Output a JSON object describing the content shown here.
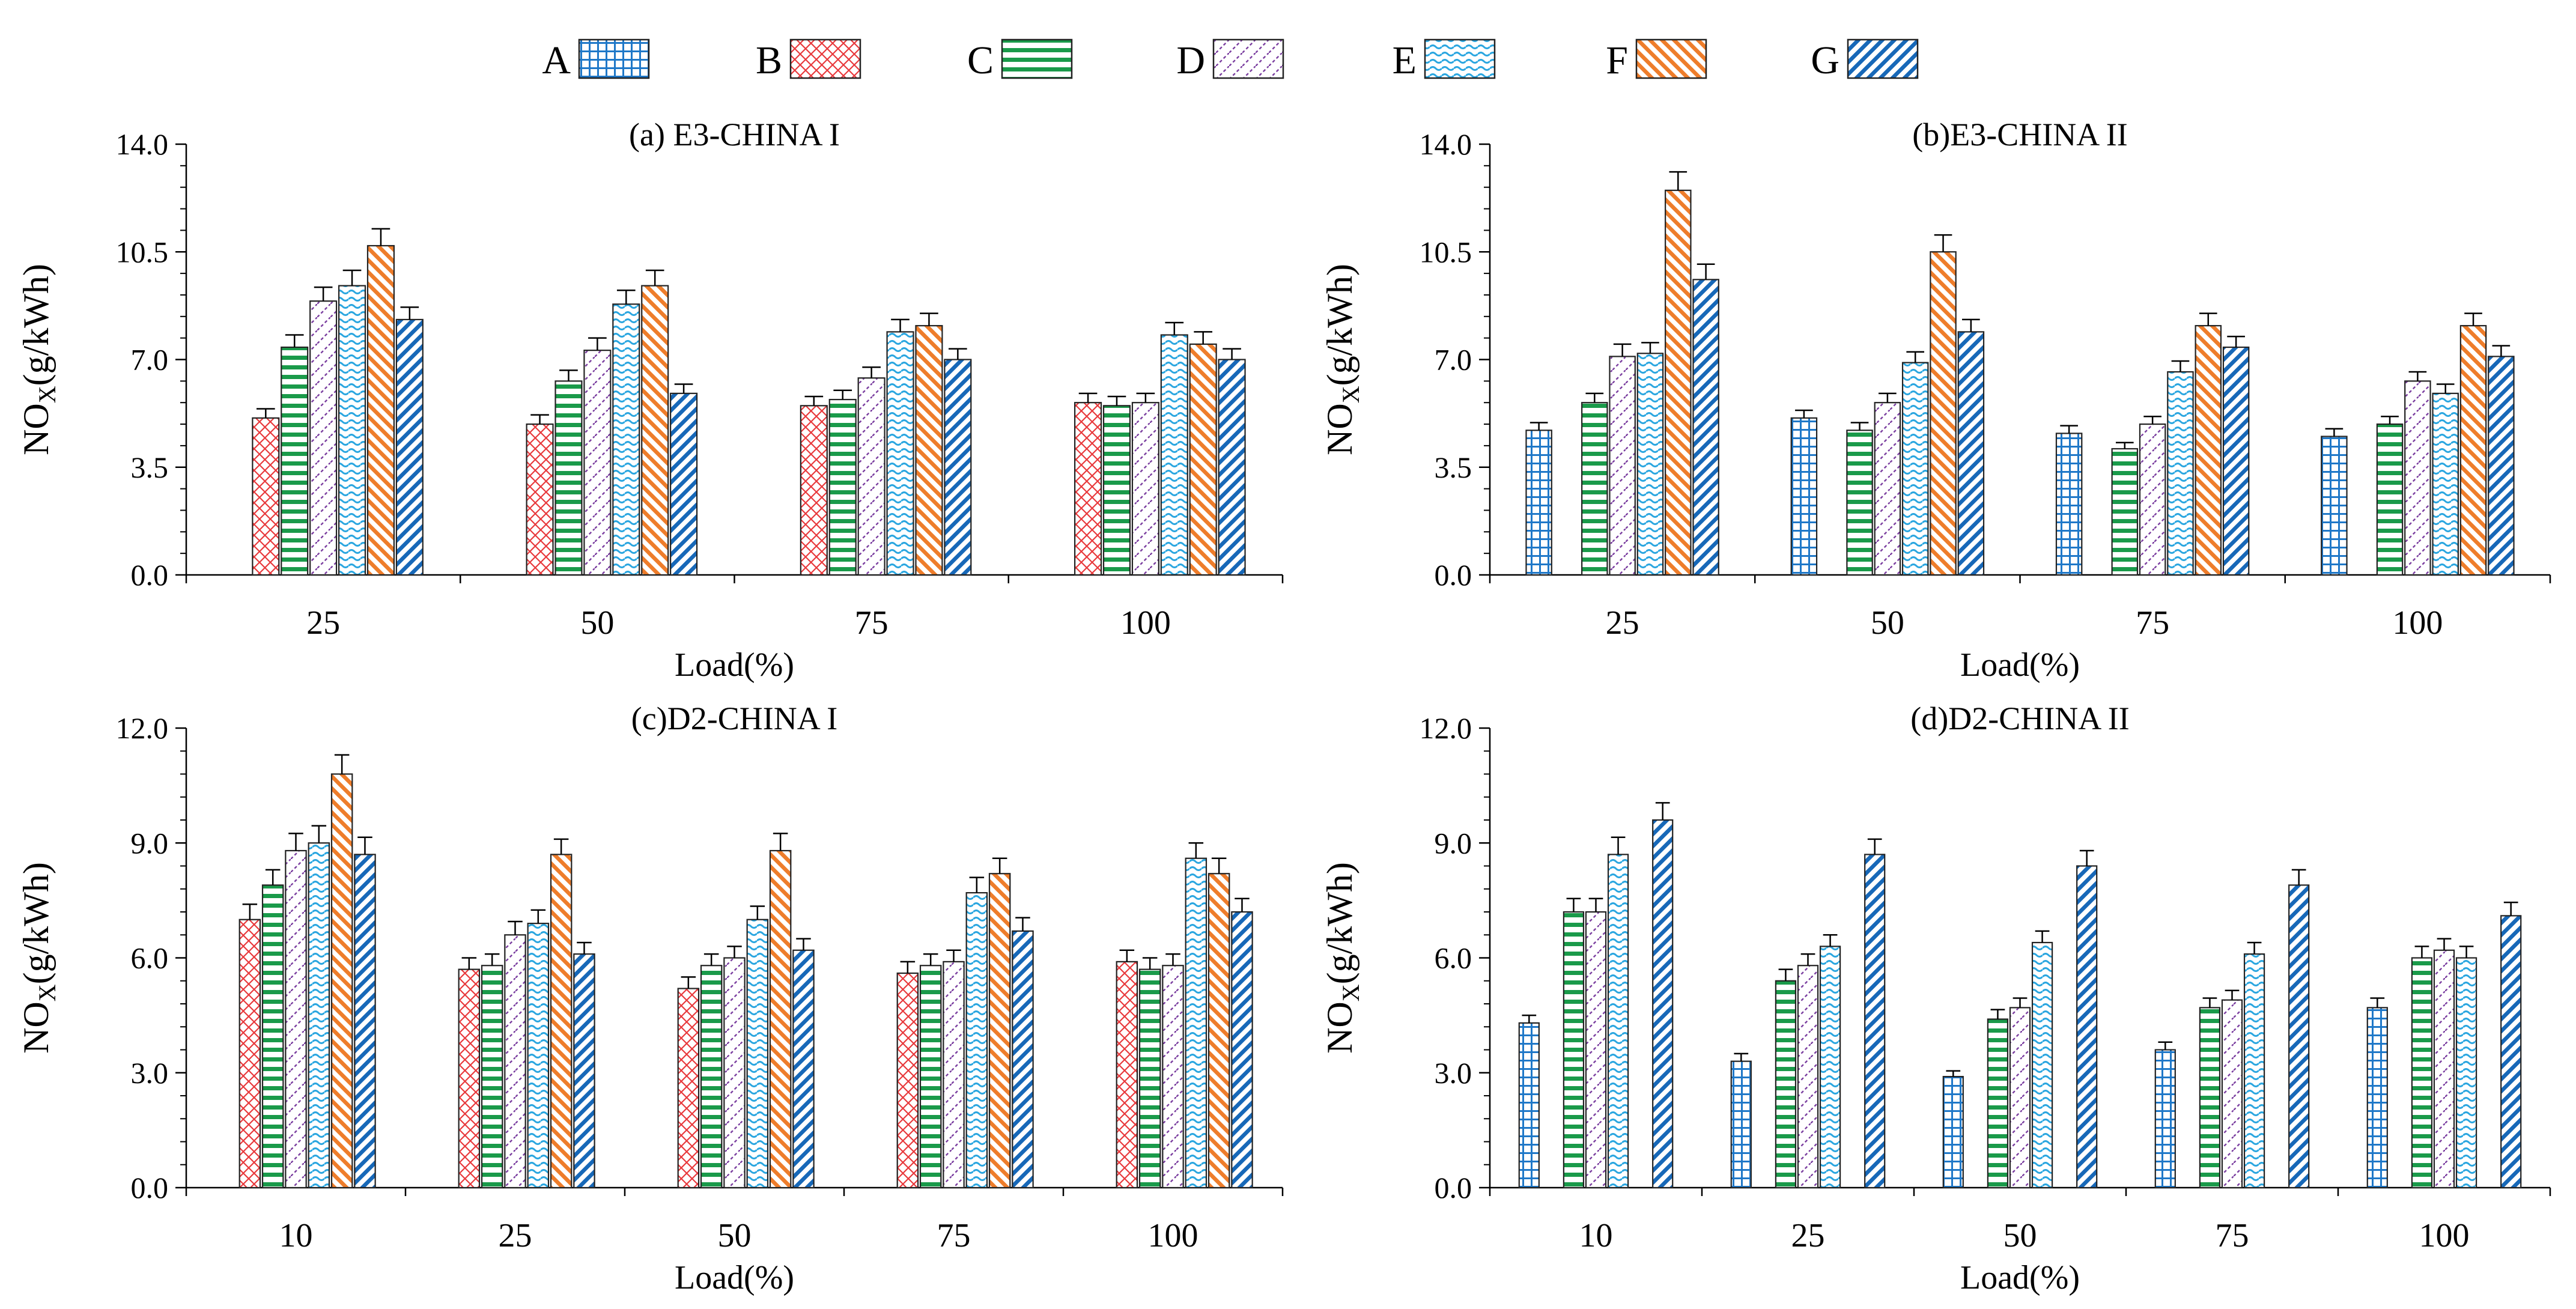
{
  "colors": {
    "A": "#1f78c8",
    "B": "#e8393c",
    "C": "#1a9a4a",
    "D": "#7b3fa0",
    "E": "#2aa6e0",
    "F": "#ee7d2b",
    "G": "#1768b8"
  },
  "legend": [
    "A",
    "B",
    "C",
    "D",
    "E",
    "F",
    "G"
  ],
  "chart_data": [
    {
      "type": "bar",
      "title": "(a) E3-CHINA I",
      "xlabel": "Load(%)",
      "ylabel_main": "NO",
      "ylabel_sub": "X",
      "ylabel_rest": "(g/kWh)",
      "ylim": [
        0,
        14
      ],
      "yticks": [
        "0.0",
        "3.5",
        "7.0",
        "10.5",
        "14.0"
      ],
      "ytick_values": [
        0,
        3.5,
        7,
        10.5,
        14
      ],
      "categories": [
        "25",
        "50",
        "75",
        "100"
      ],
      "series": [
        {
          "name": "A",
          "values": [
            null,
            null,
            null,
            null
          ],
          "errors": [
            null,
            null,
            null,
            null
          ]
        },
        {
          "name": "B",
          "values": [
            5.1,
            4.9,
            5.5,
            5.6
          ],
          "errors": [
            0.3,
            0.3,
            0.3,
            0.3
          ]
        },
        {
          "name": "C",
          "values": [
            7.4,
            6.3,
            5.7,
            5.5
          ],
          "errors": [
            0.4,
            0.35,
            0.3,
            0.3
          ]
        },
        {
          "name": "D",
          "values": [
            8.9,
            7.3,
            6.4,
            5.6
          ],
          "errors": [
            0.45,
            0.4,
            0.35,
            0.3
          ]
        },
        {
          "name": "E",
          "values": [
            9.4,
            8.8,
            7.9,
            7.8
          ],
          "errors": [
            0.5,
            0.45,
            0.4,
            0.4
          ]
        },
        {
          "name": "F",
          "values": [
            10.7,
            9.4,
            8.1,
            7.5
          ],
          "errors": [
            0.55,
            0.5,
            0.4,
            0.4
          ]
        },
        {
          "name": "G",
          "values": [
            8.3,
            5.9,
            7.0,
            7.0
          ],
          "errors": [
            0.4,
            0.3,
            0.35,
            0.35
          ]
        }
      ]
    },
    {
      "type": "bar",
      "title": "(b)E3-CHINA II",
      "xlabel": "Load(%)",
      "ylabel_main": "NO",
      "ylabel_sub": "X",
      "ylabel_rest": "(g/kWh)",
      "ylim": [
        0,
        14
      ],
      "yticks": [
        "0.0",
        "3.5",
        "7.0",
        "10.5",
        "14.0"
      ],
      "ytick_values": [
        0,
        3.5,
        7,
        10.5,
        14
      ],
      "categories": [
        "25",
        "50",
        "75",
        "100"
      ],
      "series": [
        {
          "name": "A",
          "values": [
            4.7,
            5.1,
            4.6,
            4.5
          ],
          "errors": [
            0.25,
            0.25,
            0.25,
            0.25
          ]
        },
        {
          "name": "B",
          "values": [
            null,
            null,
            null,
            null
          ],
          "errors": [
            null,
            null,
            null,
            null
          ]
        },
        {
          "name": "C",
          "values": [
            5.6,
            4.7,
            4.1,
            4.9
          ],
          "errors": [
            0.3,
            0.25,
            0.2,
            0.25
          ]
        },
        {
          "name": "D",
          "values": [
            7.1,
            5.6,
            4.9,
            6.3
          ],
          "errors": [
            0.4,
            0.3,
            0.25,
            0.3
          ]
        },
        {
          "name": "E",
          "values": [
            7.2,
            6.9,
            6.6,
            5.9
          ],
          "errors": [
            0.35,
            0.35,
            0.35,
            0.3
          ]
        },
        {
          "name": "F",
          "values": [
            12.5,
            10.5,
            8.1,
            8.1
          ],
          "errors": [
            0.6,
            0.55,
            0.4,
            0.4
          ]
        },
        {
          "name": "G",
          "values": [
            9.6,
            7.9,
            7.4,
            7.1
          ],
          "errors": [
            0.5,
            0.4,
            0.35,
            0.35
          ]
        }
      ]
    },
    {
      "type": "bar",
      "title": "(c)D2-CHINA I",
      "xlabel": "Load(%)",
      "ylabel_main": "NO",
      "ylabel_sub": "X",
      "ylabel_rest": "(g/kWh)",
      "ylim": [
        0,
        12
      ],
      "yticks": [
        "0.0",
        "3.0",
        "6.0",
        "9.0",
        "12.0"
      ],
      "ytick_values": [
        0,
        3,
        6,
        9,
        12
      ],
      "categories": [
        "10",
        "25",
        "50",
        "75",
        "100"
      ],
      "series": [
        {
          "name": "A",
          "values": [
            null,
            null,
            null,
            null,
            null
          ],
          "errors": [
            null,
            null,
            null,
            null,
            null
          ]
        },
        {
          "name": "B",
          "values": [
            7.0,
            5.7,
            5.2,
            5.6,
            5.9
          ],
          "errors": [
            0.4,
            0.3,
            0.3,
            0.3,
            0.3
          ]
        },
        {
          "name": "C",
          "values": [
            7.9,
            5.8,
            5.8,
            5.8,
            5.7
          ],
          "errors": [
            0.4,
            0.3,
            0.3,
            0.3,
            0.3
          ]
        },
        {
          "name": "D",
          "values": [
            8.8,
            6.6,
            6.0,
            5.9,
            5.8
          ],
          "errors": [
            0.45,
            0.35,
            0.3,
            0.3,
            0.3
          ]
        },
        {
          "name": "E",
          "values": [
            9.0,
            6.9,
            7.0,
            7.7,
            8.6
          ],
          "errors": [
            0.45,
            0.35,
            0.35,
            0.4,
            0.4
          ]
        },
        {
          "name": "F",
          "values": [
            10.8,
            8.7,
            8.8,
            8.2,
            8.2
          ],
          "errors": [
            0.5,
            0.4,
            0.45,
            0.4,
            0.4
          ]
        },
        {
          "name": "G",
          "values": [
            8.7,
            6.1,
            6.2,
            6.7,
            7.2
          ],
          "errors": [
            0.45,
            0.3,
            0.3,
            0.35,
            0.35
          ]
        }
      ]
    },
    {
      "type": "bar",
      "title": "(d)D2-CHINA II",
      "xlabel": "Load(%)",
      "ylabel_main": "NO",
      "ylabel_sub": "X",
      "ylabel_rest": "(g/kWh)",
      "ylim": [
        0,
        12
      ],
      "yticks": [
        "0.0",
        "3.0",
        "6.0",
        "9.0",
        "12.0"
      ],
      "ytick_values": [
        0,
        3,
        6,
        9,
        12
      ],
      "categories": [
        "10",
        "25",
        "50",
        "75",
        "100"
      ],
      "series": [
        {
          "name": "A",
          "values": [
            4.3,
            3.3,
            2.9,
            3.6,
            4.7
          ],
          "errors": [
            0.2,
            0.2,
            0.15,
            0.2,
            0.25
          ]
        },
        {
          "name": "B",
          "values": [
            null,
            null,
            null,
            null,
            null
          ],
          "errors": [
            null,
            null,
            null,
            null,
            null
          ]
        },
        {
          "name": "C",
          "values": [
            7.2,
            5.4,
            4.4,
            4.7,
            6.0
          ],
          "errors": [
            0.35,
            0.3,
            0.25,
            0.25,
            0.3
          ]
        },
        {
          "name": "D",
          "values": [
            7.2,
            5.8,
            4.7,
            4.9,
            6.2
          ],
          "errors": [
            0.35,
            0.3,
            0.25,
            0.25,
            0.3
          ]
        },
        {
          "name": "E",
          "values": [
            8.7,
            6.3,
            6.4,
            6.1,
            6.0
          ],
          "errors": [
            0.45,
            0.3,
            0.3,
            0.3,
            0.3
          ]
        },
        {
          "name": "F",
          "values": [
            null,
            null,
            null,
            null,
            null
          ],
          "errors": [
            null,
            null,
            null,
            null,
            null
          ]
        },
        {
          "name": "G",
          "values": [
            9.6,
            8.7,
            8.4,
            7.9,
            7.1
          ],
          "errors": [
            0.45,
            0.4,
            0.4,
            0.4,
            0.35
          ]
        }
      ]
    }
  ]
}
